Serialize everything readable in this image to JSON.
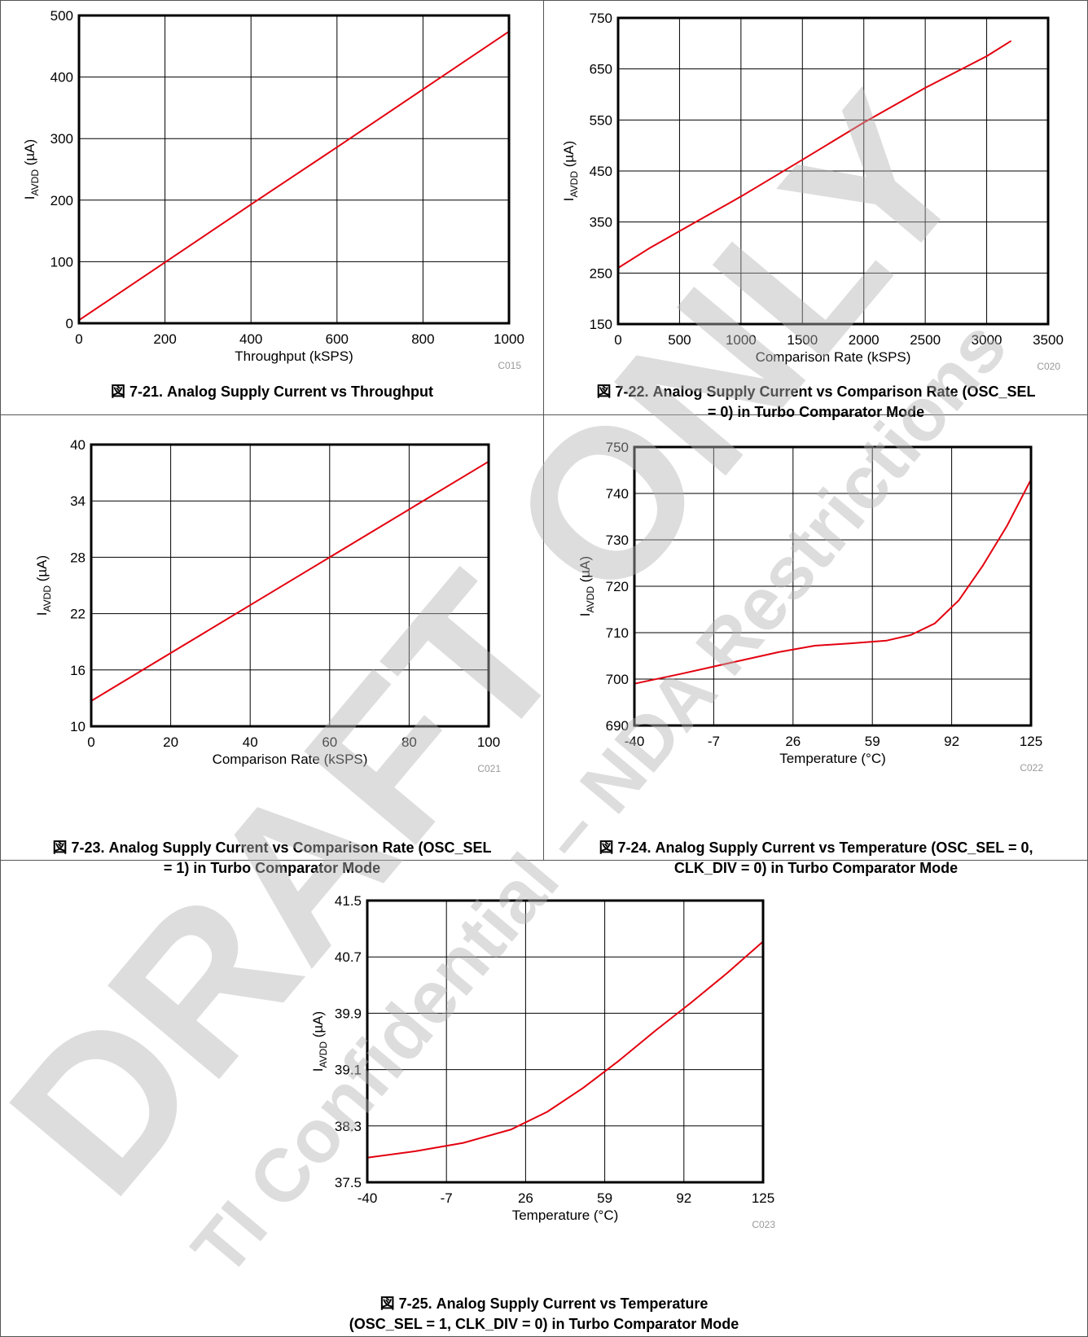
{
  "watermark": {
    "main": "DRAFT ONLY",
    "sub": "TI Confidential – NDA Restrictions"
  },
  "charts": [
    {
      "id": "fig-7-21",
      "caption": "図 7-21. Analog Supply Current vs Throughput",
      "code": "C015",
      "chart_data": {
        "type": "line",
        "xlabel": "Throughput (kSPS)",
        "ylabel": "I_AVDD (µA)",
        "xlim": [
          0,
          1000
        ],
        "ylim": [
          0,
          500
        ],
        "xticks": [
          0,
          200,
          400,
          600,
          800,
          1000
        ],
        "yticks": [
          0,
          100,
          200,
          300,
          400,
          500
        ],
        "grid": true,
        "series": [
          {
            "x": [
              0,
              200,
              400,
              600,
              800,
              1000
            ],
            "y": [
              5,
              99,
              193,
              286,
              380,
              474
            ]
          }
        ]
      }
    },
    {
      "id": "fig-7-22",
      "caption": "図 7-22. Analog Supply Current vs Comparison Rate (OSC_SEL\n= 0) in Turbo Comparator Mode",
      "code": "C020",
      "chart_data": {
        "type": "line",
        "xlabel": "Comparison Rate (kSPS)",
        "ylabel": "I_AVDD (µA)",
        "xlim": [
          0,
          3500
        ],
        "ylim": [
          150,
          750
        ],
        "xticks": [
          0,
          500,
          1000,
          1500,
          2000,
          2500,
          3000,
          3500
        ],
        "yticks": [
          150,
          250,
          350,
          450,
          550,
          650,
          750
        ],
        "grid": true,
        "series": [
          {
            "x": [
              0,
              250,
              500,
              1000,
              1500,
              2000,
              2500,
              3000,
              3200
            ],
            "y": [
              260,
              298,
              332,
              400,
              472,
              545,
              613,
              675,
              705
            ]
          }
        ]
      }
    },
    {
      "id": "fig-7-23",
      "caption": "図 7-23. Analog Supply Current vs Comparison Rate (OSC_SEL\n= 1) in Turbo Comparator Mode",
      "code": "C021",
      "chart_data": {
        "type": "line",
        "xlabel": "Comparison Rate (kSPS)",
        "ylabel": "I_AVDD (µA)",
        "xlim": [
          0,
          100
        ],
        "ylim": [
          10,
          40
        ],
        "xticks": [
          0,
          20,
          40,
          60,
          80,
          100
        ],
        "yticks": [
          10,
          16,
          22,
          28,
          34,
          40
        ],
        "grid": true,
        "series": [
          {
            "x": [
              0,
              20,
              40,
              60,
              80,
              100
            ],
            "y": [
              12.7,
              17.8,
              22.9,
              28.0,
              33.1,
              38.2
            ]
          }
        ]
      }
    },
    {
      "id": "fig-7-24",
      "caption": "図 7-24. Analog Supply Current vs Temperature (OSC_SEL = 0,\nCLK_DIV = 0) in Turbo Comparator Mode",
      "code": "C022",
      "chart_data": {
        "type": "line",
        "xlabel": "Temperature (°C)",
        "ylabel": "I_AVDD (µA)",
        "xlim": [
          -40,
          125
        ],
        "ylim": [
          690,
          750
        ],
        "xticks": [
          -40,
          -7,
          26,
          59,
          92,
          125
        ],
        "yticks": [
          690,
          700,
          710,
          720,
          730,
          740,
          750
        ],
        "grid": true,
        "series": [
          {
            "x": [
              -40,
              -20,
              0,
              20,
              35,
              50,
              65,
              75,
              85,
              95,
              105,
              115,
              125
            ],
            "y": [
              699,
              701.2,
              703.5,
              705.8,
              707.2,
              707.7,
              708.3,
              709.5,
              712,
              717,
              724.5,
              733,
              743
            ]
          }
        ]
      }
    },
    {
      "id": "fig-7-25",
      "caption": "図 7-25. Analog Supply Current vs Temperature\n(OSC_SEL = 1, CLK_DIV = 0) in Turbo Comparator Mode",
      "code": "C023",
      "chart_data": {
        "type": "line",
        "xlabel": "Temperature (°C)",
        "ylabel": "I_AVDD (µA)",
        "xlim": [
          -40,
          125
        ],
        "ylim": [
          37.5,
          41.5
        ],
        "xticks": [
          -40,
          -7,
          26,
          59,
          92,
          125
        ],
        "yticks": [
          37.5,
          38.3,
          39.1,
          39.9,
          40.7,
          41.5
        ],
        "grid": true,
        "series": [
          {
            "x": [
              -40,
              -20,
              0,
              20,
              35,
              50,
              65,
              80,
              95,
              110,
              125
            ],
            "y": [
              37.85,
              37.94,
              38.06,
              38.25,
              38.5,
              38.84,
              39.23,
              39.65,
              40.05,
              40.47,
              40.92
            ]
          }
        ]
      }
    }
  ]
}
